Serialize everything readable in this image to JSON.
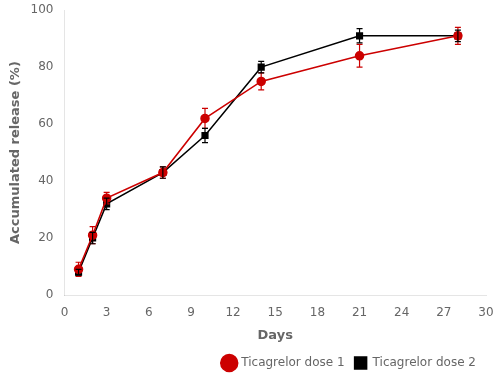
{
  "chart_data": {
    "type": "line",
    "xlabel": "Days",
    "ylabel": "Accumulated release (%)",
    "x": [
      1,
      2,
      3,
      7,
      10,
      14,
      21,
      28
    ],
    "series": [
      {
        "name": "Ticagrelor dose 1",
        "color": "#cc0000",
        "marker": "circle",
        "line_style": "solid",
        "values": [
          9,
          21,
          34,
          43,
          62,
          75,
          84,
          91
        ],
        "yerr": [
          2.5,
          3,
          2,
          2,
          3.5,
          3,
          4,
          3
        ]
      },
      {
        "name": "Ticagrelor dose 2",
        "color": "#000000",
        "marker": "square",
        "line_style": "solid",
        "values": [
          8,
          20,
          32,
          43,
          56,
          80,
          91,
          91
        ],
        "yerr": [
          1,
          2,
          2,
          2,
          2.5,
          2,
          2.5,
          2
        ]
      }
    ],
    "xlim": [
      0,
      30
    ],
    "ylim": [
      0,
      100
    ],
    "xticks": [
      0,
      3,
      6,
      9,
      12,
      15,
      18,
      21,
      24,
      27,
      30
    ],
    "yticks": [
      0,
      20,
      40,
      60,
      80,
      100
    ],
    "grid": false,
    "legend": "lower right"
  }
}
